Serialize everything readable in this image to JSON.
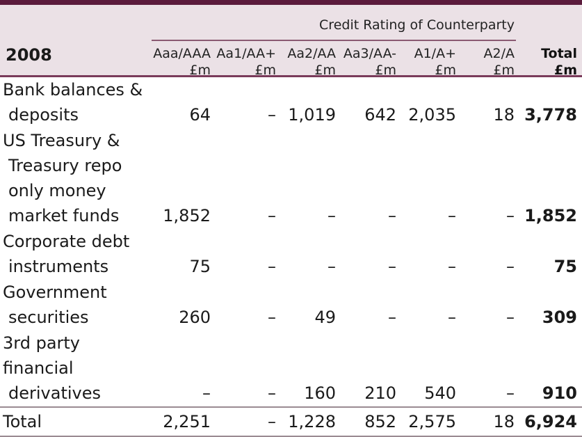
{
  "table": {
    "year": "2008",
    "group_header": "Credit Rating of Counterparty",
    "columns": [
      {
        "rating": "Aaa/AAA",
        "unit": "£m"
      },
      {
        "rating": "Aa1/AA+",
        "unit": "£m"
      },
      {
        "rating": "Aa2/AA",
        "unit": "£m"
      },
      {
        "rating": "Aa3/AA-",
        "unit": "£m"
      },
      {
        "rating": "A1/A+",
        "unit": "£m"
      },
      {
        "rating": "A2/A",
        "unit": "£m"
      },
      {
        "rating": "Total",
        "unit": "£m"
      }
    ],
    "rows": [
      {
        "label_lines": [
          "Bank balances &",
          "deposits"
        ],
        "values": [
          "64",
          "–",
          "1,019",
          "642",
          "2,035",
          "18",
          "3,778"
        ]
      },
      {
        "label_lines": [
          "US Treasury &",
          "Treasury repo",
          "only money",
          "market funds"
        ],
        "values": [
          "1,852",
          "–",
          "–",
          "–",
          "–",
          "–",
          "1,852"
        ]
      },
      {
        "label_lines": [
          "Corporate debt",
          "instruments"
        ],
        "values": [
          "75",
          "–",
          "–",
          "–",
          "–",
          "–",
          "75"
        ]
      },
      {
        "label_lines": [
          "Government",
          "securities"
        ],
        "values": [
          "260",
          "–",
          "49",
          "–",
          "–",
          "–",
          "309"
        ]
      },
      {
        "label_lines": [
          "3rd party financial",
          "derivatives"
        ],
        "values": [
          "–",
          "–",
          "160",
          "210",
          "540",
          "–",
          "910"
        ]
      }
    ],
    "total_row": {
      "label": "Total",
      "values": [
        "2,251",
        "–",
        "1,228",
        "852",
        "2,575",
        "18",
        "6,924"
      ]
    }
  }
}
